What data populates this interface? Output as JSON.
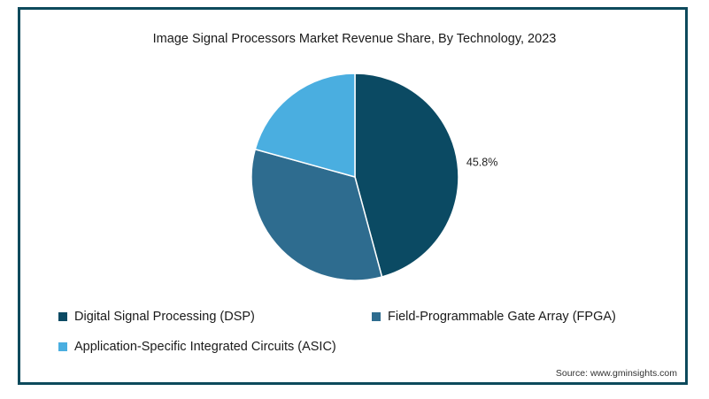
{
  "chart_data": {
    "type": "pie",
    "title": "Image Signal Processors Market Revenue Share, By Technology, 2023",
    "categories": [
      "Digital Signal Processing (DSP)",
      "Field-Programmable Gate Array (FPGA)",
      "Application-Specific Integrated Circuits (ASIC)"
    ],
    "values": [
      45.8,
      33.5,
      20.7
    ],
    "colors": [
      "#0b4a63",
      "#2e6c8f",
      "#4aaee0"
    ],
    "data_labels": [
      "45.8%",
      "",
      ""
    ],
    "legend_position": "bottom"
  },
  "source": "Source: www.gminsights.com"
}
